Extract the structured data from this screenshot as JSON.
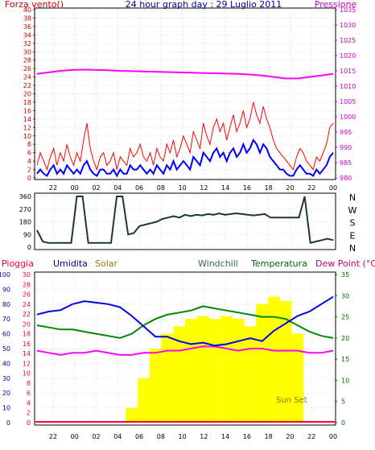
{
  "chart_data": [
    {
      "type": "line",
      "title": "24 hour graph day : 29 Luglio 2011",
      "left_label": "Forza vento()",
      "right_label": "Pressione",
      "left_ticks": [
        "0",
        "2",
        "4",
        "6",
        "8",
        "10",
        "12",
        "14",
        "16",
        "18",
        "20",
        "22",
        "24",
        "26",
        "28",
        "30",
        "32",
        "34",
        "36",
        "38",
        "40"
      ],
      "right_ticks": [
        "980",
        "985",
        "990",
        "995",
        "1000",
        "1005",
        "1010",
        "1015",
        "1020",
        "1025",
        "1030",
        "1035"
      ],
      "x_ticks": [
        "22",
        "00",
        "02",
        "04",
        "06",
        "08",
        "10",
        "12",
        "14",
        "16",
        "18",
        "20",
        "22",
        "00"
      ],
      "ylim_left": [
        0,
        40
      ],
      "ylim_right": [
        980,
        1035
      ],
      "colors": {
        "gust": "#ff0000",
        "speed": "#0000ff",
        "pressure": "#ff00ff",
        "left_axis": "#cc0000",
        "right_axis": "#cc00cc"
      },
      "series": [
        {
          "values": [
            3,
            6,
            4,
            2,
            5,
            7,
            3,
            6,
            4,
            8,
            5,
            3,
            6,
            4,
            9,
            13,
            7,
            4,
            2,
            5,
            6,
            3,
            4,
            6,
            2,
            5,
            4,
            3,
            7,
            5,
            6,
            8,
            5,
            4,
            6,
            3,
            7,
            5,
            4,
            8,
            6,
            9,
            5,
            7,
            10,
            8,
            6,
            11,
            9,
            7,
            13,
            10,
            8,
            12,
            14,
            11,
            13,
            9,
            12,
            15,
            11,
            13,
            16,
            12,
            14,
            18,
            15,
            13,
            17,
            14,
            12,
            9,
            7,
            6,
            5,
            4,
            3,
            2,
            5,
            7,
            6,
            4,
            3,
            2,
            5,
            4,
            6,
            8,
            12,
            13
          ]
        },
        {
          "values": [
            1,
            2,
            1,
            0.5,
            2,
            3,
            1,
            2,
            1,
            3,
            2,
            1,
            2,
            1,
            3,
            4,
            2,
            1,
            0.5,
            2,
            2,
            1,
            1,
            2,
            0.5,
            2,
            1,
            1,
            3,
            2,
            2,
            3,
            2,
            1,
            2,
            1,
            3,
            2,
            1,
            3,
            2,
            4,
            2,
            3,
            4,
            3,
            2,
            5,
            4,
            3,
            6,
            5,
            4,
            6,
            7,
            5,
            6,
            4,
            6,
            7,
            5,
            6,
            8,
            6,
            7,
            9,
            8,
            6,
            8,
            7,
            5,
            4,
            3,
            2,
            2,
            1,
            0.5,
            0.5,
            2,
            3,
            2,
            1,
            1,
            0.5,
            2,
            1,
            2,
            3,
            5,
            6
          ]
        },
        {
          "values": [
            1014,
            1014.5,
            1015,
            1015.3,
            1015.4,
            1015.3,
            1015.2,
            1015,
            1014.9,
            1014.8,
            1014.7,
            1014.6,
            1014.5,
            1014.4,
            1014.3,
            1014.2,
            1014.1,
            1014,
            1013.8,
            1013.5,
            1013,
            1012.5,
            1012.5,
            1013,
            1013.5,
            1014
          ]
        }
      ]
    },
    {
      "type": "line",
      "left_ticks": [
        "360",
        "270",
        "180",
        "90",
        "0"
      ],
      "right_labels": [
        "N",
        "W",
        "S",
        "E",
        "N"
      ],
      "ylim": [
        0,
        360
      ],
      "color": "#1a3a2a",
      "series": [
        {
          "values": [
            120,
            40,
            30,
            30,
            30,
            30,
            30,
            360,
            360,
            30,
            30,
            30,
            30,
            30,
            360,
            360,
            90,
            100,
            150,
            160,
            170,
            180,
            200,
            210,
            220,
            210,
            230,
            220,
            230,
            225,
            235,
            230,
            240,
            230,
            235,
            240,
            235,
            230,
            225,
            230,
            235,
            210,
            210,
            210,
            210,
            210,
            210,
            360,
            30,
            40,
            50,
            60,
            50
          ]
        }
      ]
    },
    {
      "type": "line",
      "legend": [
        "Pioggia",
        "Umidita",
        "Solar",
        "Windchill",
        "Temperatura",
        "Dew Point (°C)"
      ],
      "legend_colors": [
        "#ff0033",
        "#000099",
        "#997700",
        "#336655",
        "#006600",
        "#cc0066"
      ],
      "left_ticks_rain": [
        "0",
        "2",
        "4",
        "6",
        "8",
        "10",
        "12",
        "14",
        "16",
        "18",
        "20",
        "22",
        "24",
        "26",
        "28",
        "30"
      ],
      "left_ticks_hum": [
        "0",
        "10",
        "20",
        "30",
        "40",
        "50",
        "60",
        "70",
        "80",
        "90",
        "100"
      ],
      "right_ticks": [
        "0",
        "5",
        "10",
        "15",
        "20",
        "25",
        "30",
        "35"
      ],
      "annotation": "Sun Set",
      "ylim_temp": [
        0,
        35
      ],
      "ylim_hum": [
        0,
        100
      ],
      "series": [
        {
          "values": [
            0,
            0,
            0,
            0,
            0,
            0,
            0,
            0,
            0,
            0,
            0,
            0,
            0,
            0,
            0,
            0,
            0,
            0,
            0,
            0,
            0,
            0,
            0,
            0,
            0,
            0
          ]
        },
        {
          "values": [
            73,
            75,
            76,
            80,
            82,
            81,
            80,
            78,
            72,
            65,
            58,
            58,
            55,
            53,
            54,
            52,
            53,
            55,
            57,
            55,
            62,
            67,
            72,
            75,
            80,
            85
          ]
        },
        {
          "values": [
            0,
            0,
            0,
            0,
            0,
            0,
            0,
            0,
            10,
            30,
            50,
            60,
            65,
            70,
            72,
            70,
            72,
            70,
            65,
            80,
            85,
            82,
            60,
            0,
            0,
            0
          ]
        },
        {
          "values": [
            23,
            22.5,
            22,
            22,
            21.5,
            21,
            20.5,
            20,
            21,
            23,
            24.5,
            25.5,
            26,
            26.5,
            27.5,
            27,
            26.5,
            26,
            25.5,
            25,
            25,
            24.5,
            23,
            21.5,
            20.5,
            20
          ]
        },
        {
          "values": [
            23,
            22.5,
            22,
            22,
            21.5,
            21,
            20.5,
            20,
            21,
            23,
            24.5,
            25.5,
            26,
            26.5,
            27.5,
            27,
            26.5,
            26,
            25.5,
            25,
            25,
            24.5,
            23,
            21.5,
            20.5,
            20
          ]
        },
        {
          "values": [
            17,
            16.5,
            16,
            16.5,
            16.5,
            17,
            16.5,
            16,
            16,
            16.5,
            16.5,
            17,
            17,
            17.5,
            18,
            18,
            17.5,
            17,
            17.5,
            17.5,
            17,
            17,
            17,
            16.5,
            16.5,
            17
          ]
        }
      ]
    }
  ]
}
